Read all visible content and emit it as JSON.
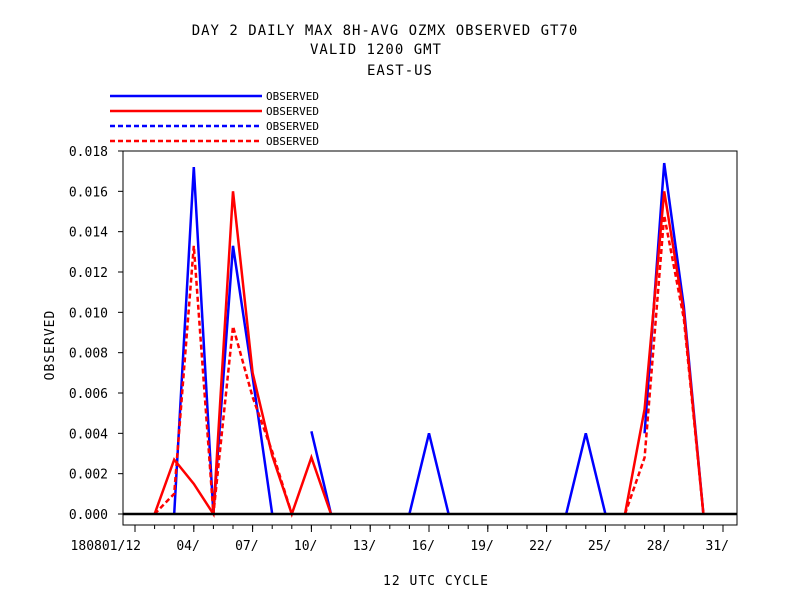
{
  "chart_data": {
    "type": "line",
    "title_lines": [
      "DAY 2 DAILY MAX   8H-AVG OZMX OBSERVED GT70",
      "VALID 1200 GMT",
      "EAST-US"
    ],
    "xlabel": "12 UTC CYCLE",
    "ylabel": "OBSERVED",
    "x_tick_labels": [
      "180801/12",
      "04/",
      "07/",
      "10/",
      "13/",
      "16/",
      "19/",
      "22/",
      "25/",
      "28/",
      "31/"
    ],
    "x_tick_values": [
      1,
      4,
      7,
      10,
      13,
      16,
      19,
      22,
      25,
      28,
      31
    ],
    "x_range": [
      1,
      31
    ],
    "y_ticks": [
      "0.000",
      "0.002",
      "0.004",
      "0.006",
      "0.008",
      "0.010",
      "0.012",
      "0.014",
      "0.016",
      "0.018"
    ],
    "y_tick_values": [
      0,
      0.002,
      0.004,
      0.006,
      0.008,
      0.01,
      0.012,
      0.014,
      0.016,
      0.018
    ],
    "ylim": [
      0,
      0.018
    ],
    "x": [
      2,
      3,
      4,
      5,
      6,
      7,
      8,
      9,
      10,
      11,
      12,
      13,
      14,
      15,
      16,
      17,
      18,
      19,
      20,
      21,
      22,
      23,
      24,
      25,
      26,
      27,
      28,
      29,
      30
    ],
    "legend_position": "top-left",
    "series": [
      {
        "name": "OBSERVED",
        "color": "#0000ff",
        "dash": "solid",
        "values": [
          null,
          0,
          0.0172,
          0,
          0.0133,
          0.0068,
          0,
          null,
          0.0041,
          0,
          null,
          null,
          null,
          0,
          0.004,
          0,
          null,
          null,
          null,
          null,
          null,
          0,
          0.004,
          0,
          null,
          0.004,
          0.0174,
          0.0103,
          0
        ]
      },
      {
        "name": "OBSERVED",
        "color": "#ff0000",
        "dash": "solid",
        "values": [
          0,
          0.0027,
          0.0015,
          0,
          0.016,
          0.007,
          0.0029,
          0,
          0.0028,
          0,
          null,
          null,
          null,
          null,
          null,
          null,
          null,
          null,
          null,
          null,
          null,
          null,
          null,
          null,
          0,
          0.0052,
          0.016,
          0.01,
          0
        ]
      },
      {
        "name": "OBSERVED",
        "color": "#0000ff",
        "dash": "dash",
        "values": [
          null,
          null,
          null,
          null,
          null,
          null,
          null,
          null,
          null,
          null,
          null,
          null,
          null,
          null,
          null,
          null,
          null,
          null,
          null,
          null,
          null,
          null,
          null,
          null,
          null,
          null,
          null,
          null,
          null
        ]
      },
      {
        "name": "OBSERVED",
        "color": "#ff0000",
        "dash": "dash",
        "values": [
          0,
          0.001,
          0.0133,
          0,
          0.0093,
          0.0058,
          0.0031,
          0,
          null,
          null,
          null,
          null,
          null,
          null,
          null,
          null,
          null,
          null,
          null,
          null,
          null,
          null,
          null,
          null,
          0,
          0.0028,
          0.0148,
          0.0097,
          0
        ]
      }
    ]
  }
}
